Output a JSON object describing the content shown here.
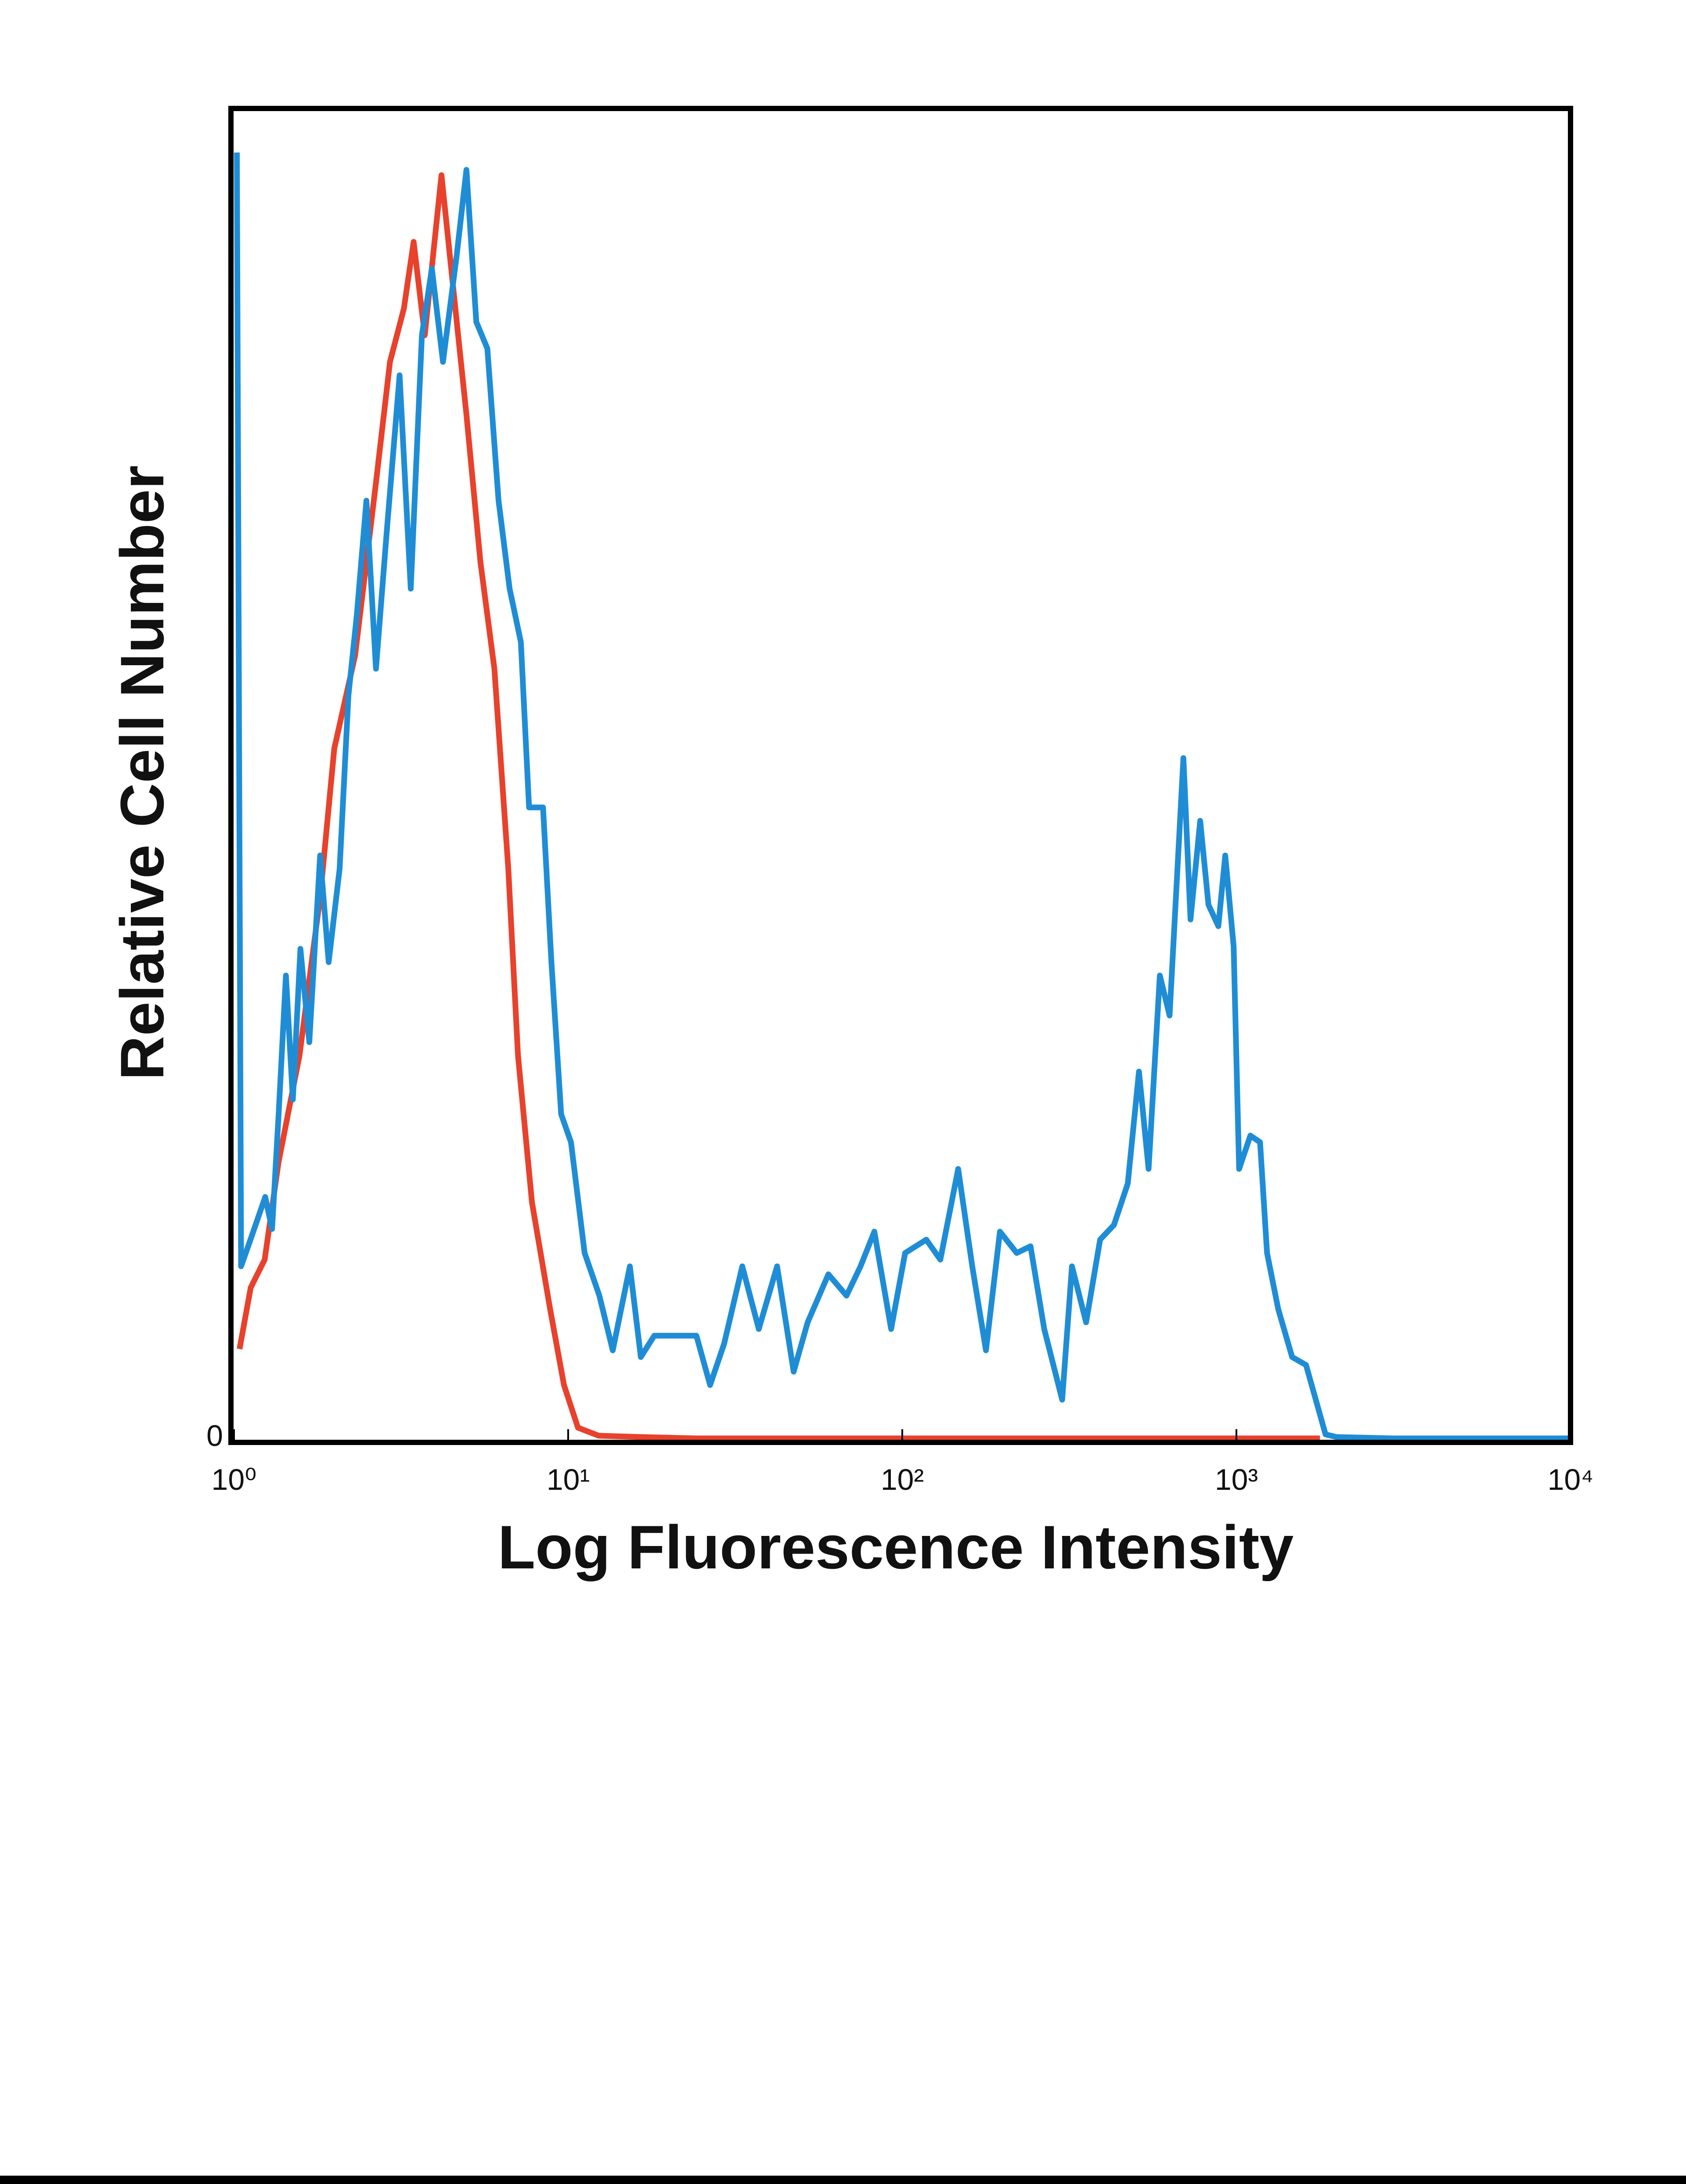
{
  "chart_data": {
    "type": "line",
    "xlabel": "Log Fluorescence Intensity",
    "ylabel": "Relative Cell Number",
    "xscale": "log",
    "xlim": [
      1,
      10000
    ],
    "xticks": [
      {
        "value": 1,
        "label": "10⁰"
      },
      {
        "value": 10,
        "label": "10¹"
      },
      {
        "value": 100,
        "label": "10²"
      },
      {
        "value": 1000,
        "label": "10³"
      },
      {
        "value": 10000,
        "label": "10⁴"
      }
    ],
    "ylim": [
      0,
      100
    ],
    "yticks": [
      0
    ],
    "series": [
      {
        "color": "#e8412c",
        "x": [
          1.039,
          1.122,
          1.235,
          1.359,
          1.57,
          1.813,
          1.995,
          2.304,
          2.661,
          2.929,
          3.224,
          3.448,
          3.723,
          4.177,
          4.51,
          4.964,
          5.464,
          6.015,
          6.621,
          7.079,
          7.793,
          8.83,
          9.716,
          10.7,
          12.35,
          16.47,
          24.17,
          164.7,
          1778
        ],
        "values": [
          7,
          11.6,
          13.7,
          21,
          29,
          41,
          52,
          59,
          72,
          81,
          85,
          90,
          83,
          95,
          87,
          77,
          66,
          58,
          43,
          29,
          18,
          10,
          4.3,
          1.1,
          0.5,
          0.4,
          0.3,
          0.3,
          0.3
        ]
      },
      {
        "color": "#1f8dd6",
        "x": [
          1.02,
          1.05,
          1.12,
          1.24,
          1.3,
          1.36,
          1.43,
          1.5,
          1.58,
          1.68,
          1.81,
          1.92,
          2.07,
          2.2,
          2.33,
          2.49,
          2.66,
          2.87,
          3.13,
          3.38,
          3.65,
          3.91,
          4.22,
          4.64,
          4.96,
          5.31,
          5.73,
          6.19,
          6.68,
          7.22,
          7.64,
          8.41,
          8.91,
          9.53,
          10.2,
          11.2,
          12.4,
          13.6,
          15.3,
          16.5,
          18.1,
          20.9,
          24.2,
          26.6,
          29.3,
          33.2,
          37.2,
          42.2,
          47.3,
          52.1,
          60.1,
          68.1,
          75,
          82.5,
          92.6,
          102,
          118,
          130,
          147,
          162,
          178,
          196,
          220,
          242,
          266,
          301,
          322,
          355,
          391,
          430,
          473,
          511,
          546,
          590,
          631,
          694,
          729,
          779,
          825,
          883,
          926,
          981,
          1019,
          1101,
          1177,
          1235,
          1334,
          1468,
          1616,
          1728,
          1848,
          1995,
          2929,
          10000
        ],
        "values": [
          96.7,
          13.2,
          15.2,
          18.4,
          16,
          24.6,
          35,
          25.7,
          37,
          30,
          44,
          36,
          43,
          56,
          62,
          70.6,
          58,
          68.5,
          80,
          64,
          83,
          88,
          81,
          89,
          95.4,
          84,
          82,
          70.6,
          64,
          60,
          47.6,
          47.6,
          36,
          24.6,
          22.5,
          14.2,
          11,
          6.9,
          13.2,
          6.4,
          8,
          8,
          8,
          4.3,
          7.4,
          13.2,
          8.5,
          13.2,
          5.3,
          9,
          12.6,
          11,
          13.2,
          15.8,
          8.5,
          14.2,
          15.2,
          13.7,
          20.5,
          13.2,
          6.9,
          15.8,
          14.2,
          14.7,
          8.5,
          3.2,
          13.2,
          9,
          15.2,
          16.3,
          19.4,
          27.8,
          20.5,
          35,
          32,
          51.3,
          39.2,
          46.6,
          40.3,
          38.7,
          44,
          37.2,
          20.5,
          23,
          22.5,
          14.2,
          10,
          6.4,
          5.8,
          3.2,
          0.6,
          0.4,
          0.3,
          0.3
        ]
      }
    ]
  }
}
